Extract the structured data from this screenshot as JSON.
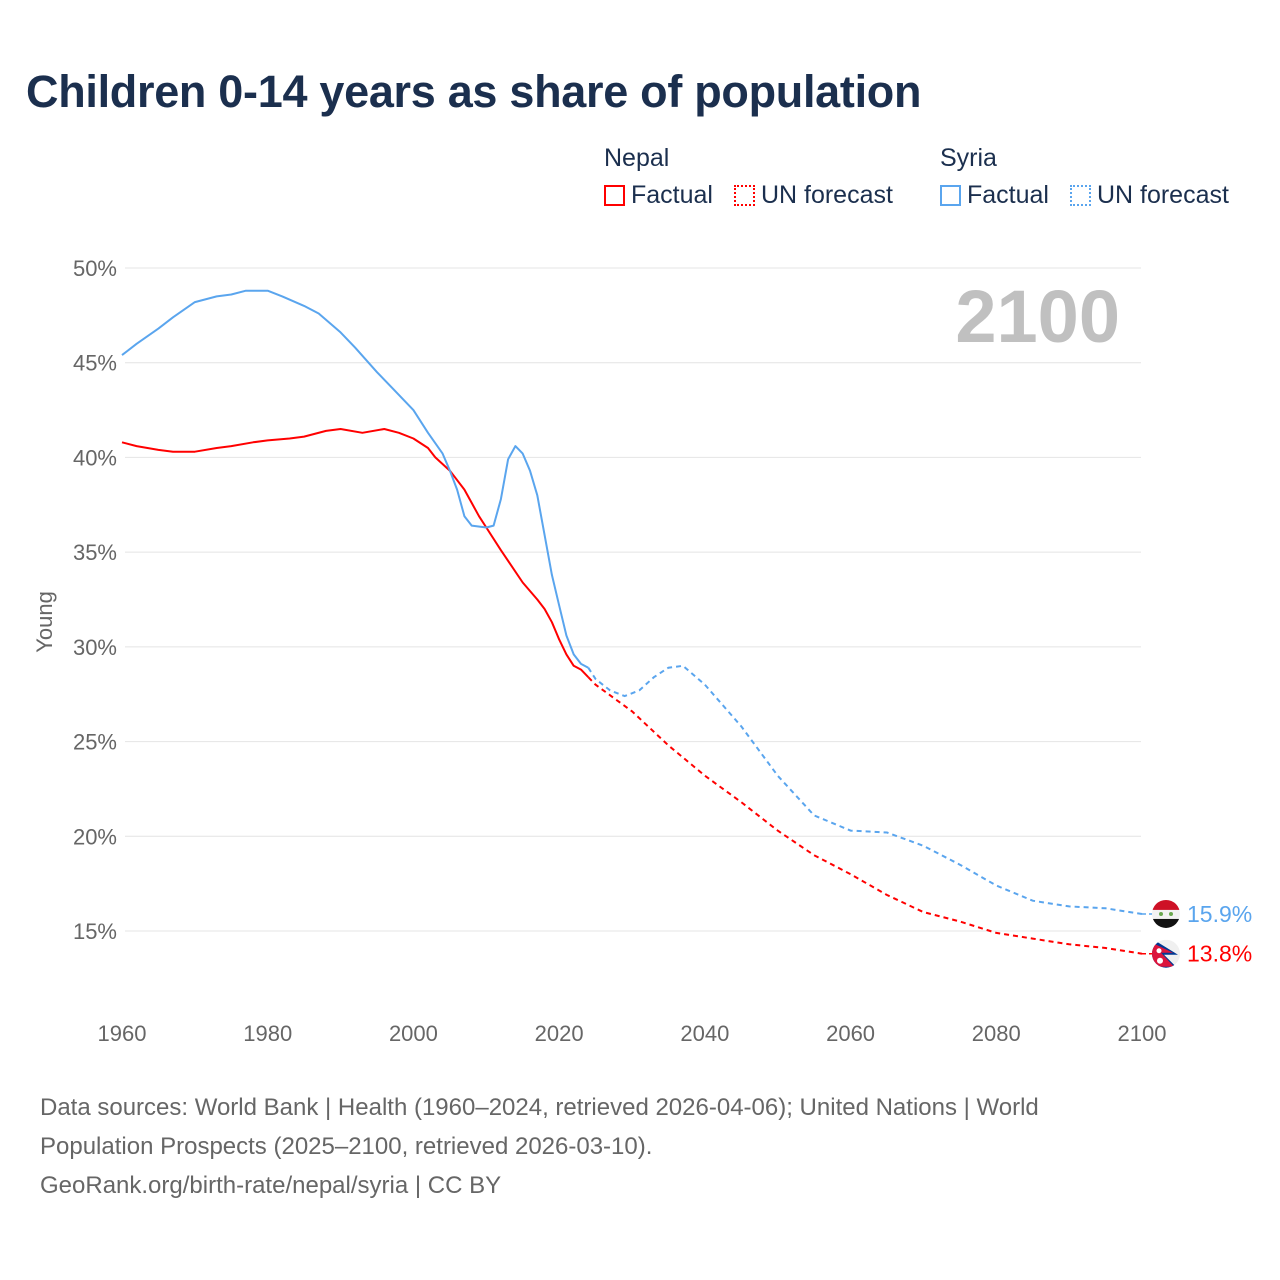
{
  "title": "Children 0-14 years as share of population",
  "legend": {
    "groups": [
      {
        "country": "Nepal",
        "items": [
          "Factual",
          "UN forecast"
        ],
        "color": "#ff0000"
      },
      {
        "country": "Syria",
        "items": [
          "Factual",
          "UN forecast"
        ],
        "color": "#5aa5ee"
      }
    ]
  },
  "year_overlay": "2100",
  "footer": {
    "line1": "Data sources: World Bank | Health (1960–2024, retrieved 2026-04-06); United Nations | World",
    "line2": "Population Prospects (2025–2100, retrieved 2026-03-10).",
    "line3": "GeoRank.org/birth-rate/nepal/syria | CC BY"
  },
  "chart_data": {
    "type": "line",
    "title": "Children 0-14 years as share of population",
    "xlabel": "",
    "ylabel": "Young",
    "xlim": [
      1960,
      2100
    ],
    "ylim": [
      15,
      50
    ],
    "x_ticks": [
      "1960",
      "1980",
      "2000",
      "2020",
      "2040",
      "2060",
      "2080",
      "2100"
    ],
    "y_ticks": [
      "50%",
      "45%",
      "40%",
      "35%",
      "30%",
      "25%",
      "20%",
      "15%"
    ],
    "grid": true,
    "legend_position": "top-right",
    "series": [
      {
        "name": "Nepal",
        "color": "#ff0000",
        "end_label": "13.8%",
        "flag": "nepal-flag",
        "factual": [
          [
            1960,
            40.8
          ],
          [
            1962,
            40.6
          ],
          [
            1965,
            40.4
          ],
          [
            1967,
            40.3
          ],
          [
            1970,
            40.3
          ],
          [
            1973,
            40.5
          ],
          [
            1975,
            40.6
          ],
          [
            1978,
            40.8
          ],
          [
            1980,
            40.9
          ],
          [
            1983,
            41.0
          ],
          [
            1985,
            41.1
          ],
          [
            1988,
            41.4
          ],
          [
            1990,
            41.5
          ],
          [
            1993,
            41.3
          ],
          [
            1996,
            41.5
          ],
          [
            1998,
            41.3
          ],
          [
            2000,
            41.0
          ],
          [
            2002,
            40.5
          ],
          [
            2003,
            40.0
          ],
          [
            2005,
            39.3
          ],
          [
            2007,
            38.3
          ],
          [
            2008,
            37.6
          ],
          [
            2009,
            36.9
          ],
          [
            2010,
            36.3
          ],
          [
            2012,
            35.1
          ],
          [
            2015,
            33.4
          ],
          [
            2017,
            32.5
          ],
          [
            2018,
            32.0
          ],
          [
            2019,
            31.3
          ],
          [
            2020,
            30.4
          ],
          [
            2021,
            29.6
          ],
          [
            2022,
            29.0
          ],
          [
            2023,
            28.8
          ],
          [
            2024,
            28.4
          ]
        ],
        "forecast": [
          [
            2024,
            28.4
          ],
          [
            2025,
            28.0
          ],
          [
            2030,
            26.6
          ],
          [
            2035,
            24.8
          ],
          [
            2040,
            23.2
          ],
          [
            2045,
            21.8
          ],
          [
            2050,
            20.3
          ],
          [
            2055,
            19.0
          ],
          [
            2060,
            18.0
          ],
          [
            2065,
            16.9
          ],
          [
            2070,
            16.0
          ],
          [
            2075,
            15.5
          ],
          [
            2080,
            14.9
          ],
          [
            2085,
            14.6
          ],
          [
            2090,
            14.3
          ],
          [
            2095,
            14.1
          ],
          [
            2100,
            13.8
          ]
        ]
      },
      {
        "name": "Syria",
        "color": "#5aa5ee",
        "end_label": "15.9%",
        "flag": "syria-flag",
        "factual": [
          [
            1960,
            45.4
          ],
          [
            1962,
            46.0
          ],
          [
            1965,
            46.8
          ],
          [
            1967,
            47.4
          ],
          [
            1970,
            48.2
          ],
          [
            1973,
            48.5
          ],
          [
            1975,
            48.6
          ],
          [
            1977,
            48.8
          ],
          [
            1980,
            48.8
          ],
          [
            1982,
            48.5
          ],
          [
            1985,
            48.0
          ],
          [
            1987,
            47.6
          ],
          [
            1990,
            46.6
          ],
          [
            1992,
            45.8
          ],
          [
            1995,
            44.5
          ],
          [
            1997,
            43.7
          ],
          [
            2000,
            42.5
          ],
          [
            2002,
            41.3
          ],
          [
            2004,
            40.2
          ],
          [
            2005,
            39.3
          ],
          [
            2006,
            38.3
          ],
          [
            2007,
            36.9
          ],
          [
            2008,
            36.4
          ],
          [
            2010,
            36.3
          ],
          [
            2011,
            36.4
          ],
          [
            2012,
            37.8
          ],
          [
            2013,
            39.9
          ],
          [
            2014,
            40.6
          ],
          [
            2015,
            40.2
          ],
          [
            2016,
            39.3
          ],
          [
            2017,
            38.0
          ],
          [
            2018,
            35.9
          ],
          [
            2019,
            33.8
          ],
          [
            2020,
            32.2
          ],
          [
            2021,
            30.6
          ],
          [
            2022,
            29.6
          ],
          [
            2023,
            29.1
          ],
          [
            2024,
            28.9
          ]
        ],
        "forecast": [
          [
            2024,
            28.9
          ],
          [
            2025,
            28.3
          ],
          [
            2027,
            27.7
          ],
          [
            2029,
            27.4
          ],
          [
            2031,
            27.7
          ],
          [
            2033,
            28.4
          ],
          [
            2035,
            28.9
          ],
          [
            2037,
            29.0
          ],
          [
            2040,
            28.0
          ],
          [
            2045,
            25.8
          ],
          [
            2050,
            23.2
          ],
          [
            2055,
            21.1
          ],
          [
            2060,
            20.3
          ],
          [
            2065,
            20.2
          ],
          [
            2070,
            19.5
          ],
          [
            2075,
            18.5
          ],
          [
            2080,
            17.4
          ],
          [
            2085,
            16.6
          ],
          [
            2090,
            16.3
          ],
          [
            2095,
            16.2
          ],
          [
            2100,
            15.9
          ]
        ]
      }
    ]
  }
}
